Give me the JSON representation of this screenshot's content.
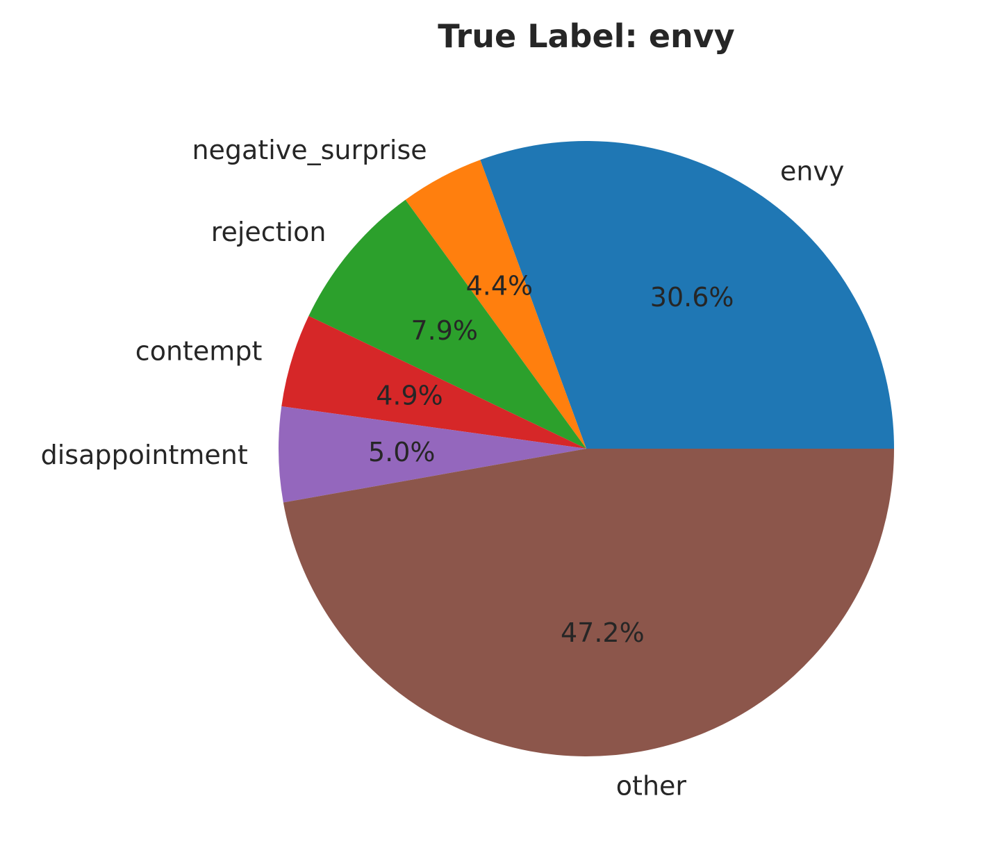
{
  "chart_data": {
    "type": "pie",
    "title": "True Label: envy",
    "start_angle_deg": 0,
    "direction": "counterclockwise",
    "slices": [
      {
        "label": "envy",
        "value": 30.6,
        "pct_label": "30.6%",
        "color": "#1f77b4"
      },
      {
        "label": "negative_surprise",
        "value": 4.4,
        "pct_label": "4.4%",
        "color": "#ff7f0e"
      },
      {
        "label": "rejection",
        "value": 7.9,
        "pct_label": "7.9%",
        "color": "#2ca02c"
      },
      {
        "label": "contempt",
        "value": 4.9,
        "pct_label": "4.9%",
        "color": "#d62728"
      },
      {
        "label": "disappointment",
        "value": 5.0,
        "pct_label": "5.0%",
        "color": "#9467bd"
      },
      {
        "label": "other",
        "value": 47.2,
        "pct_label": "47.2%",
        "color": "#8c564b"
      }
    ]
  }
}
